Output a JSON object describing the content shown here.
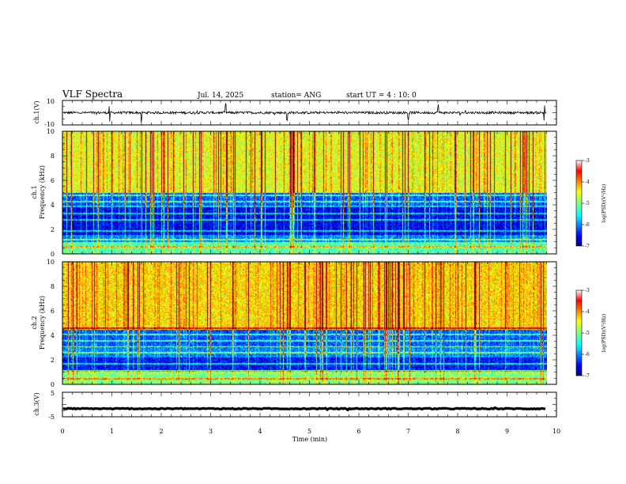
{
  "header": {
    "title": "VLF Spectra",
    "date": "Jul. 14, 2025",
    "station": "station= ANG",
    "start_ut": "start  UT =   4 : 10: 0"
  },
  "chart_data": [
    {
      "id": "ch1-waveform",
      "type": "line",
      "ylabel": "ch.1(V)",
      "ylim": [
        -10,
        10
      ],
      "yticks": [
        "10",
        "-10"
      ],
      "baseline_v": 0,
      "noise_amplitude_v": 1.0,
      "spike_times_min": [
        0.95,
        1.6,
        3.3,
        4.55,
        7.0,
        7.6,
        9.75
      ],
      "xlim": [
        0,
        10
      ],
      "data_end_min": 9.8
    },
    {
      "id": "ch1-spectrogram",
      "type": "heatmap",
      "ylabel_top": "ch.1",
      "ylabel": "Frequency (kHz)",
      "ylim": [
        0,
        10
      ],
      "yticks": [
        "0",
        "2",
        "4",
        "6",
        "8",
        "10"
      ],
      "xlim": [
        0,
        10
      ],
      "data_end_min": 9.8,
      "colorbar": {
        "label": "log(PSD)(V²/Hz)",
        "range": [
          -7,
          -3
        ],
        "ticks": [
          "-3",
          "-4",
          "-5",
          "-6",
          "-7"
        ]
      },
      "bands_khz": [
        {
          "from": 0,
          "to": 1.0,
          "level": -5.2
        },
        {
          "from": 1.0,
          "to": 1.6,
          "level": -6.0
        },
        {
          "from": 1.6,
          "to": 4.0,
          "level": -6.6
        },
        {
          "from": 4.0,
          "to": 5.0,
          "level": -6.2
        },
        {
          "from": 5.0,
          "to": 10.0,
          "level": -4.6
        }
      ],
      "line_khz": [
        0.6,
        1.2,
        1.9,
        2.8,
        3.3,
        3.9,
        4.3,
        4.8
      ]
    },
    {
      "id": "ch2-spectrogram",
      "type": "heatmap",
      "ylabel_top": "ch.2",
      "ylabel": "Frequency (kHz)",
      "ylim": [
        0,
        10
      ],
      "yticks": [
        "0",
        "2",
        "4",
        "6",
        "8",
        "10"
      ],
      "xlim": [
        0,
        10
      ],
      "data_end_min": 9.8,
      "colorbar": {
        "label": "log(PSD)(V²/Hz)",
        "range": [
          -7,
          -3
        ],
        "ticks": [
          "-3",
          "-4",
          "-5",
          "-6",
          "-7"
        ]
      },
      "bands_khz": [
        {
          "from": 0,
          "to": 1.2,
          "level": -5.0
        },
        {
          "from": 1.2,
          "to": 2.2,
          "level": -6.5
        },
        {
          "from": 2.2,
          "to": 3.2,
          "level": -6.0
        },
        {
          "from": 3.2,
          "to": 4.5,
          "level": -6.2
        },
        {
          "from": 4.5,
          "to": 10.0,
          "level": -4.4
        }
      ],
      "line_khz": [
        0.5,
        1.1,
        1.7,
        2.6,
        3.1,
        3.6,
        4.1,
        4.6
      ]
    },
    {
      "id": "ch3-waveform",
      "type": "line",
      "ylabel": "ch.3(V)",
      "ylim": [
        -5,
        5
      ],
      "yticks": [
        "5",
        "-5"
      ],
      "baseline_v": -1.7,
      "noise_amplitude_v": 0.2,
      "xlim": [
        0,
        10
      ],
      "data_end_min": 9.8
    }
  ],
  "x_axis": {
    "label": "Time (min)",
    "ticks": [
      "0",
      "1",
      "2",
      "3",
      "4",
      "5",
      "6",
      "7",
      "8",
      "9",
      "10"
    ]
  },
  "colors": {
    "ink": "#000000",
    "background": "#ffffff"
  }
}
